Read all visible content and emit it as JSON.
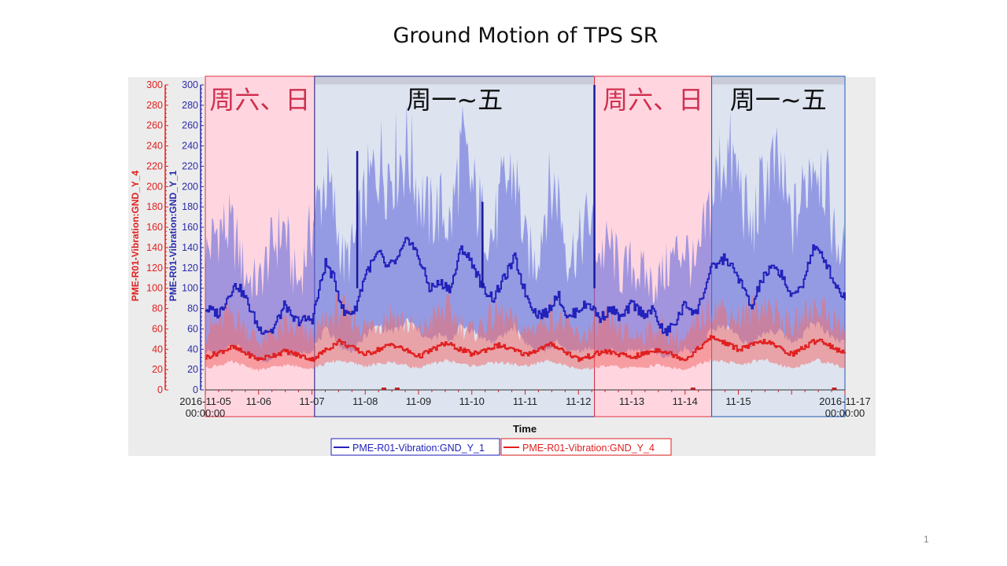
{
  "slide": {
    "title": "Ground Motion of TPS SR",
    "page_number": "1"
  },
  "chart_data": {
    "type": "line",
    "xlabel": "Time",
    "x_start": "2016-11-05 00:00:00",
    "x_end": "2016-11-17 00:00:00",
    "x_tick_labels": [
      [
        "2016-11-05",
        "00:00:00"
      ],
      [
        "11-06"
      ],
      [
        "11-07"
      ],
      [
        "11-08"
      ],
      [
        "11-09"
      ],
      [
        "11-10"
      ],
      [
        "11-11"
      ],
      [
        "11-12"
      ],
      [
        "11-13"
      ],
      [
        "11-14"
      ],
      [
        "11-15"
      ],
      [
        "2016-11-17",
        "00:00:00"
      ]
    ],
    "y_axes": [
      {
        "label": "PME-R01-Vibration:GND_Y_4",
        "color": "#e02020",
        "ylim": [
          0,
          300
        ],
        "ticks": [
          0,
          20,
          40,
          60,
          80,
          100,
          120,
          140,
          160,
          180,
          200,
          220,
          240,
          260,
          280,
          300
        ]
      },
      {
        "label": "PME-R01-Vibration:GND_Y_1",
        "color": "#2a2aaa",
        "ylim": [
          0,
          300
        ],
        "ticks": [
          0,
          20,
          40,
          60,
          80,
          100,
          120,
          140,
          160,
          180,
          200,
          220,
          240,
          260,
          280,
          300
        ]
      }
    ],
    "grid": false,
    "legend_position": "bottom",
    "regions": [
      {
        "from_day": 0,
        "to_day": 2.05,
        "label": "周六、日",
        "color": "#e03040",
        "kind": "weekend"
      },
      {
        "from_day": 2.05,
        "to_day": 7.3,
        "label": "周一~五",
        "color": "#1a1a8a",
        "kind": "weekday"
      },
      {
        "from_day": 7.3,
        "to_day": 9.5,
        "label": "周六、日",
        "color": "#e03040",
        "kind": "weekend"
      },
      {
        "from_day": 9.5,
        "to_day": 12,
        "label": "周一~五",
        "color": "#1a5ab0",
        "kind": "weekday"
      }
    ],
    "series": [
      {
        "name": "PME-R01-Vibration:GND_Y_1",
        "color": "#2222bb",
        "x_days": [
          0,
          0.25,
          0.5,
          0.6,
          0.75,
          1.0,
          1.25,
          1.5,
          1.6,
          1.75,
          2.0,
          2.25,
          2.4,
          2.6,
          2.8,
          3.0,
          3.25,
          3.4,
          3.6,
          3.8,
          4.0,
          4.2,
          4.4,
          4.6,
          4.8,
          5.0,
          5.2,
          5.4,
          5.6,
          5.8,
          6.0,
          6.2,
          6.4,
          6.6,
          6.8,
          7.0,
          7.2,
          7.4,
          7.6,
          7.8,
          8.0,
          8.2,
          8.4,
          8.6,
          8.8,
          9.0,
          9.2,
          9.5,
          9.75,
          10.0,
          10.25,
          10.4,
          10.6,
          10.8,
          11.0,
          11.2,
          11.4,
          11.6,
          11.8,
          12.0
        ],
        "mean": [
          80,
          75,
          100,
          103,
          90,
          60,
          58,
          85,
          70,
          68,
          70,
          125,
          110,
          75,
          78,
          115,
          135,
          120,
          128,
          150,
          130,
          100,
          105,
          100,
          140,
          125,
          100,
          90,
          110,
          130,
          95,
          75,
          75,
          95,
          70,
          80,
          85,
          70,
          80,
          70,
          85,
          75,
          78,
          55,
          65,
          85,
          75,
          120,
          130,
          110,
          80,
          105,
          120,
          115,
          90,
          105,
          140,
          130,
          105,
          90
        ],
        "upper": [
          140,
          170,
          165,
          150,
          120,
          110,
          150,
          170,
          130,
          110,
          170,
          220,
          190,
          130,
          150,
          200,
          240,
          230,
          240,
          250,
          210,
          180,
          190,
          170,
          250,
          210,
          180,
          160,
          210,
          230,
          150,
          130,
          200,
          210,
          140,
          150,
          180,
          140,
          150,
          120,
          130,
          120,
          110,
          120,
          140,
          150,
          120,
          200,
          250,
          220,
          160,
          200,
          230,
          220,
          170,
          200,
          250,
          230,
          160,
          140
        ],
        "lower": [
          40,
          35,
          45,
          45,
          38,
          30,
          30,
          40,
          36,
          36,
          40,
          60,
          55,
          40,
          40,
          55,
          65,
          60,
          60,
          70,
          60,
          50,
          55,
          50,
          65,
          60,
          52,
          48,
          55,
          65,
          48,
          40,
          40,
          48,
          38,
          40,
          42,
          38,
          40,
          36,
          42,
          38,
          40,
          32,
          35,
          42,
          38,
          60,
          65,
          55,
          42,
          55,
          60,
          58,
          48,
          55,
          68,
          62,
          52,
          48
        ]
      },
      {
        "name": "PME-R01-Vibration:GND_Y_4",
        "color": "#e02020",
        "x_days": [
          0,
          0.5,
          1.0,
          1.5,
          2.0,
          2.5,
          3.0,
          3.5,
          4.0,
          4.5,
          5.0,
          5.5,
          6.0,
          6.5,
          7.0,
          7.5,
          8.0,
          8.5,
          9.0,
          9.5,
          10.0,
          10.5,
          11.0,
          11.5,
          12.0
        ],
        "mean": [
          32,
          42,
          30,
          38,
          30,
          48,
          35,
          45,
          33,
          46,
          35,
          44,
          35,
          45,
          30,
          38,
          32,
          40,
          30,
          52,
          40,
          48,
          35,
          50,
          35
        ],
        "upper": [
          60,
          80,
          50,
          65,
          55,
          85,
          65,
          80,
          60,
          85,
          60,
          80,
          60,
          80,
          55,
          70,
          55,
          65,
          50,
          90,
          75,
          90,
          65,
          90,
          60
        ],
        "lower": [
          22,
          28,
          20,
          25,
          22,
          30,
          24,
          28,
          22,
          30,
          24,
          28,
          24,
          30,
          20,
          24,
          22,
          25,
          20,
          30,
          26,
          30,
          22,
          30,
          22
        ]
      }
    ],
    "spikes": [
      {
        "series": "PME-R01-Vibration:GND_Y_1",
        "day": 2.85,
        "value": 235
      },
      {
        "series": "PME-R01-Vibration:GND_Y_1",
        "day": 5.2,
        "value": 185
      },
      {
        "series": "PME-R01-Vibration:GND_Y_1",
        "day": 7.3,
        "value": 300
      }
    ]
  }
}
